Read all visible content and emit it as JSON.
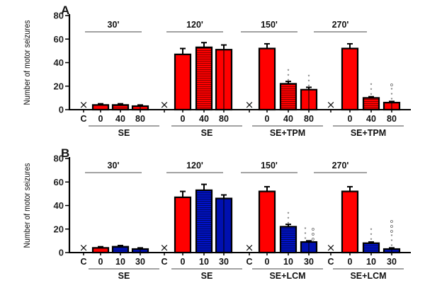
{
  "chart_data": [
    {
      "panel": "A",
      "type": "bar",
      "ylabel": "Number of motor seizures",
      "ylim": [
        0,
        80
      ],
      "yticks": [
        0,
        20,
        40,
        60,
        80
      ],
      "drug": "TPM",
      "groups": [
        {
          "time": "30'",
          "treatment": "SE",
          "categories": [
            "C",
            "0",
            "40",
            "80"
          ],
          "values": [
            0,
            4,
            4,
            3
          ],
          "errors": [
            0,
            1,
            1,
            1
          ],
          "colors": [
            "none",
            "#ff0000",
            "#ff0000",
            "#ff0000"
          ],
          "patterns": [
            "x",
            "solid",
            "hlines",
            "vline"
          ],
          "annotations": [
            "",
            "",
            "",
            ""
          ]
        },
        {
          "time": "120'",
          "treatment": "SE",
          "categories": [
            "C",
            "0",
            "40",
            "80"
          ],
          "values": [
            0,
            47,
            53,
            51
          ],
          "errors": [
            0,
            5,
            4,
            4
          ],
          "colors": [
            "none",
            "#ff0000",
            "#ff0000",
            "#ff0000"
          ],
          "patterns": [
            "x",
            "solid",
            "hlines",
            "vline"
          ],
          "annotations": [
            "",
            "",
            "",
            ""
          ]
        },
        {
          "time": "150'",
          "treatment": "SE+TPM",
          "categories": [
            "C",
            "0",
            "40",
            "80"
          ],
          "values": [
            0,
            52,
            22,
            17
          ],
          "errors": [
            0,
            4,
            2,
            2
          ],
          "colors": [
            "none",
            "#ff0000",
            "#ff0000",
            "#ff0000"
          ],
          "patterns": [
            "x",
            "solid",
            "hlines",
            "vline"
          ],
          "annotations": [
            "",
            "",
            "***",
            "***"
          ]
        },
        {
          "time": "270'",
          "treatment": "SE+TPM",
          "categories": [
            "C",
            "0",
            "40",
            "80"
          ],
          "values": [
            0,
            52,
            10,
            6
          ],
          "errors": [
            0,
            4,
            1,
            1
          ],
          "colors": [
            "none",
            "#ff0000",
            "#ff0000",
            "#ff0000"
          ],
          "patterns": [
            "x",
            "solid",
            "hlines",
            "vline"
          ],
          "annotations": [
            "",
            "",
            "***",
            "***o"
          ]
        }
      ]
    },
    {
      "panel": "B",
      "type": "bar",
      "ylabel": "Number of motor seizures",
      "ylim": [
        0,
        80
      ],
      "yticks": [
        0,
        20,
        40,
        60,
        80
      ],
      "drug": "LCM",
      "groups": [
        {
          "time": "30'",
          "treatment": "SE",
          "categories": [
            "C",
            "0",
            "10",
            "30"
          ],
          "values": [
            0,
            4,
            5,
            3
          ],
          "errors": [
            0,
            1,
            1,
            1
          ],
          "colors": [
            "none",
            "#ff0000",
            "#0010b0",
            "#0010b0"
          ],
          "patterns": [
            "x",
            "solid",
            "hlines",
            "vline"
          ],
          "annotations": [
            "",
            "",
            "",
            ""
          ]
        },
        {
          "time": "120'",
          "treatment": "SE",
          "categories": [
            "C",
            "0",
            "10",
            "30"
          ],
          "values": [
            0,
            47,
            53,
            46
          ],
          "errors": [
            0,
            5,
            5,
            3
          ],
          "colors": [
            "none",
            "#ff0000",
            "#0010b0",
            "#0010b0"
          ],
          "patterns": [
            "x",
            "solid",
            "hlines",
            "vline"
          ],
          "annotations": [
            "",
            "",
            "",
            ""
          ]
        },
        {
          "time": "150'",
          "treatment": "SE+LCM",
          "categories": [
            "C",
            "0",
            "10",
            "30"
          ],
          "values": [
            0,
            52,
            22,
            9
          ],
          "errors": [
            0,
            4,
            2,
            1
          ],
          "colors": [
            "none",
            "#ff0000",
            "#0010b0",
            "#0010b0"
          ],
          "patterns": [
            "x",
            "solid",
            "hlines",
            "vline"
          ],
          "annotations": [
            "",
            "",
            "***",
            "*** ooo"
          ]
        },
        {
          "time": "270'",
          "treatment": "SE+LCM",
          "categories": [
            "C",
            "0",
            "10",
            "30"
          ],
          "values": [
            0,
            52,
            8,
            3
          ],
          "errors": [
            0,
            4,
            1,
            1
          ],
          "colors": [
            "none",
            "#ff0000",
            "#0010b0",
            "#0010b0"
          ],
          "patterns": [
            "x",
            "solid",
            "hlines",
            "vline"
          ],
          "annotations": [
            "",
            "",
            "***",
            "***ooo"
          ]
        }
      ]
    }
  ],
  "panels": {
    "A": {
      "label": "A",
      "ylabel": "Number of motor seizures"
    },
    "B": {
      "label": "B",
      "ylabel": "Number of motor seizures"
    }
  }
}
